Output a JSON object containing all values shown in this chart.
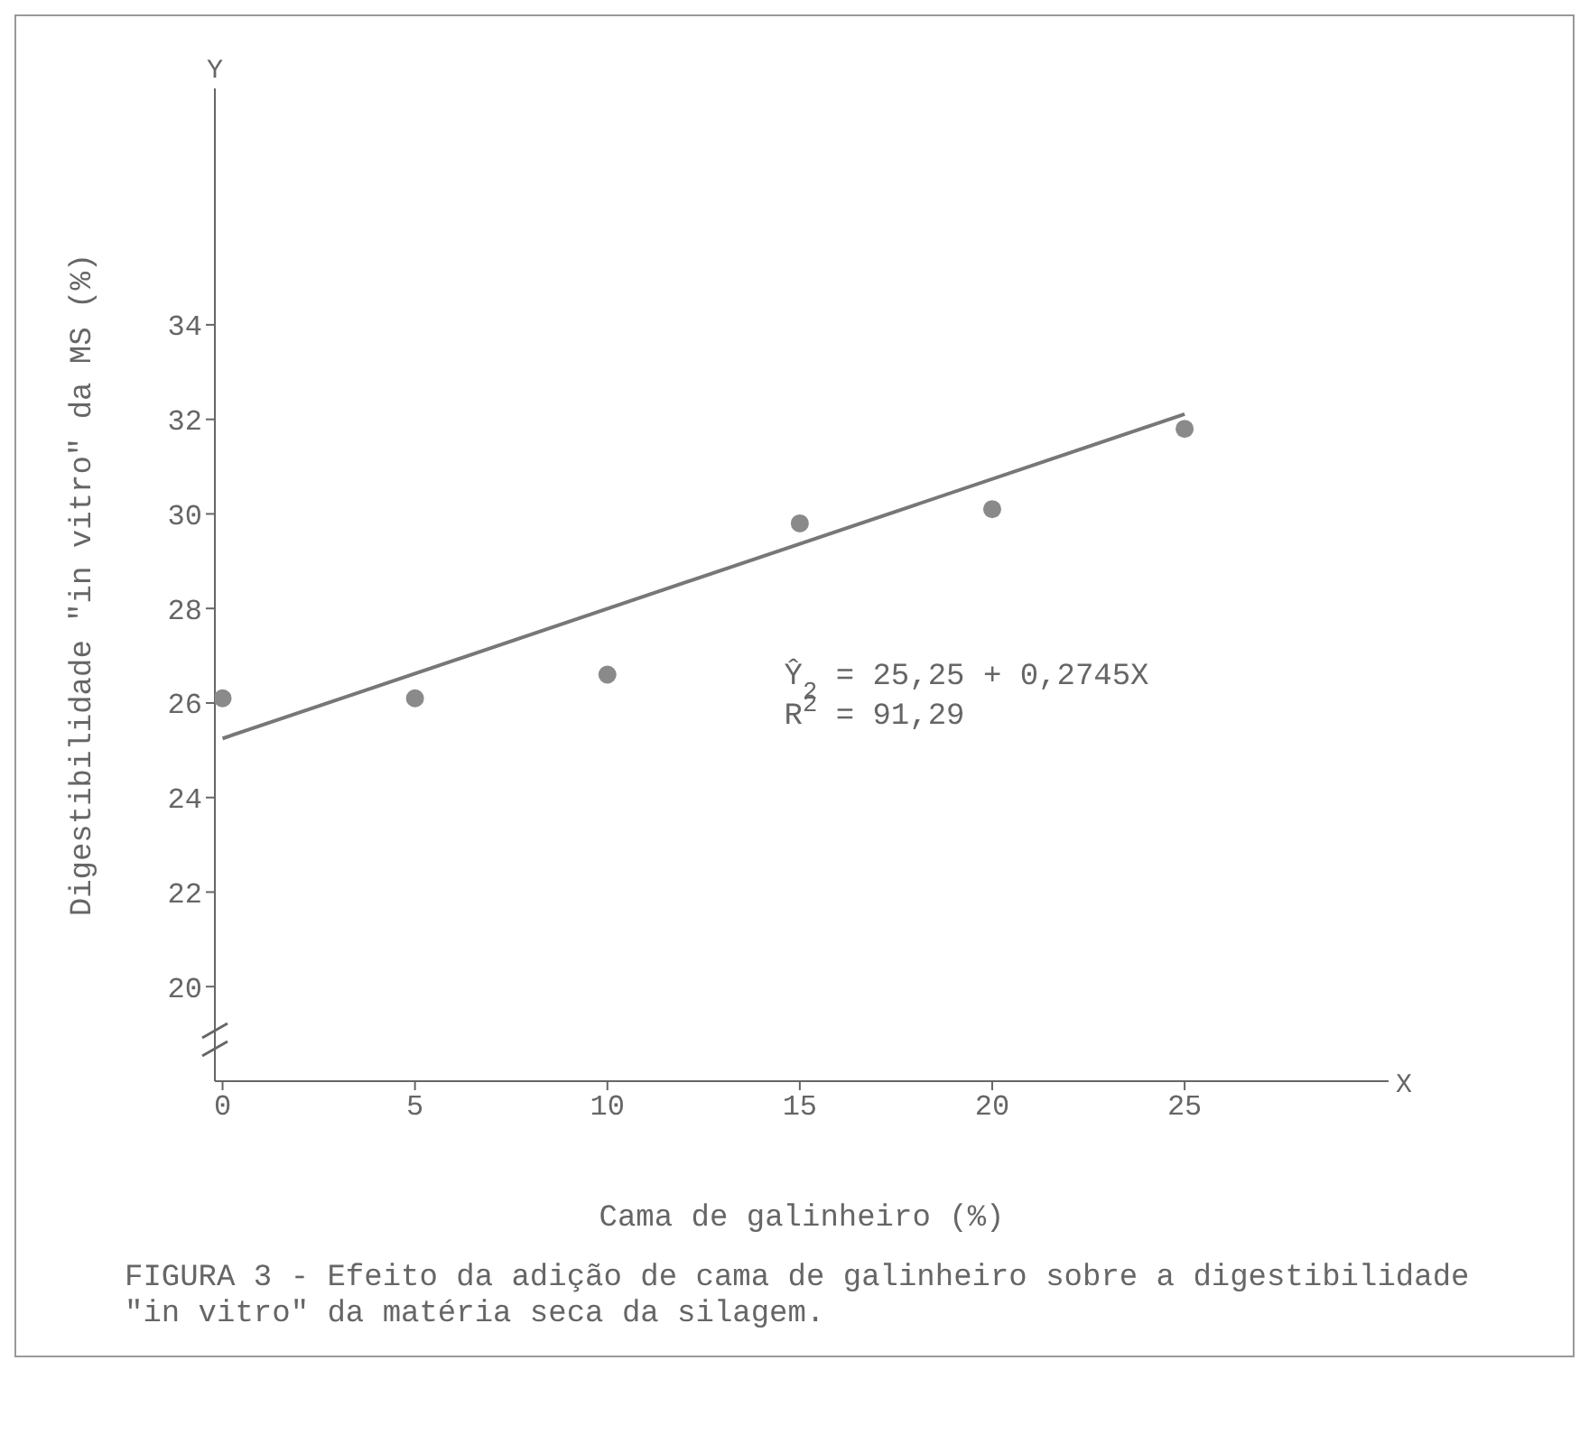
{
  "chart_data": {
    "type": "scatter",
    "title": "FIGURA 3 - Efeito da adição de cama de galinheiro sobre a digestibilidade \"in vitro\" da matéria seca da silagem.",
    "xlabel": "Cama de galinheiro (%)",
    "ylabel": "Digestibilidade \"in vitro\" da MS (%)",
    "x": [
      0,
      5,
      10,
      15,
      20,
      25
    ],
    "series": [
      {
        "color": "#8a8a8a",
        "values": [
          26.1,
          26.1,
          26.6,
          29.8,
          30.1,
          31.8
        ],
        "marker": "circle"
      },
      {
        "type": "line",
        "color": "#777777",
        "x": [
          0,
          25
        ],
        "values": [
          25.25,
          32.11
        ],
        "line_style": "solid",
        "marker": "none"
      }
    ],
    "annotations": [
      "Ŷ$_{2}$ = 25,25 + 0,2745X",
      "R$^{2}$ = 91,29",
      "Y",
      "X"
    ],
    "xlim": [
      -0.2,
      30.3
    ],
    "xticks": [
      0,
      5,
      10,
      15,
      20,
      25
    ],
    "ylim": [
      18,
      39
    ],
    "yticks": [
      20,
      22,
      24,
      26,
      28,
      30,
      32,
      34
    ],
    "grid": false,
    "legend": false
  }
}
